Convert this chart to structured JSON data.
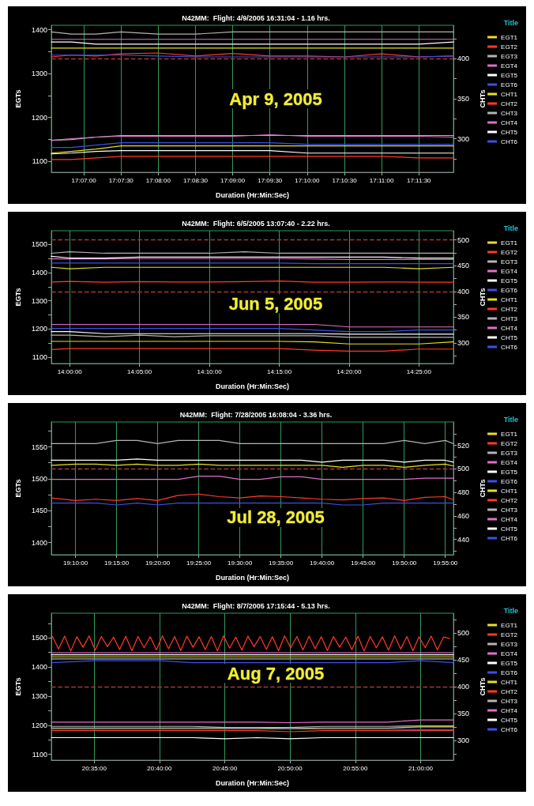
{
  "chart_data": [
    {
      "type": "line",
      "title": "N42MM:  Flight: 4/9/2005 16:31:04 - 1.16 hrs.",
      "xlabel": "Duration (Hr:Min:Sec)",
      "ylabel": "EGTs",
      "y2label": "CHTs",
      "legend_title": "Title",
      "annotations": [
        "Apr 9, 2005"
      ],
      "grid": "x",
      "legend": "right",
      "marker": "none",
      "x": [
        17.1094,
        17.1139,
        17.1194,
        17.125,
        17.1333,
        17.1417,
        17.15,
        17.1583,
        17.1667,
        17.175,
        17.1833,
        17.1917,
        17.1994
      ],
      "xlim": [
        17.1094,
        17.1994
      ],
      "xticks": [
        {
          "value": 17.116667,
          "label": "17:07:00"
        },
        {
          "value": 17.125,
          "label": "17:07:30"
        },
        {
          "value": 17.133333,
          "label": "17:08:00"
        },
        {
          "value": 17.141667,
          "label": "17:08:30"
        },
        {
          "value": 17.15,
          "label": "17:09:00"
        },
        {
          "value": 17.158333,
          "label": "17:09:30"
        },
        {
          "value": 17.166667,
          "label": "17:10:00"
        },
        {
          "value": 17.175,
          "label": "17:10:30"
        },
        {
          "value": 17.183333,
          "label": "17:11:00"
        },
        {
          "value": 17.191667,
          "label": "17:11:30"
        }
      ],
      "ylim": [
        1075,
        1410
      ],
      "yticks": [
        1100,
        {
          "value": 1150,
          "label": null
        },
        1200,
        {
          "value": 1250,
          "label": null
        },
        1300,
        {
          "value": 1350,
          "label": null
        },
        1400
      ],
      "y2lim": [
        258,
        442
      ],
      "y2ticks": [
        {
          "value": 275,
          "label": null
        },
        300,
        {
          "value": 325,
          "label": null
        },
        350,
        {
          "value": 375,
          "label": null
        },
        400,
        {
          "value": 425,
          "label": null
        }
      ],
      "ref_lines": [
        {
          "axis": "y2",
          "value": 400,
          "color": "#a83838",
          "line_style": "dashed"
        }
      ],
      "series": [
        {
          "name": "EGT1",
          "color": "#e6e020",
          "values": [
            1358,
            1358,
            1358,
            1358,
            1358,
            1358,
            1358,
            1358,
            1358,
            1358,
            1358,
            1358,
            1358
          ]
        },
        {
          "name": "EGT2",
          "color": "#ff3a2a",
          "values": [
            1338,
            1342,
            1340,
            1345,
            1347,
            1340,
            1346,
            1340,
            1340,
            1338,
            1345,
            1338,
            1340
          ]
        },
        {
          "name": "EGT3",
          "color": "#b4b4b4",
          "values": [
            1395,
            1390,
            1390,
            1395,
            1390,
            1390,
            1395,
            1395,
            1395,
            1395,
            1395,
            1395,
            1395
          ]
        },
        {
          "name": "EGT4",
          "color": "#e070c8",
          "values": [
            1378,
            1378,
            1378,
            1378,
            1378,
            1378,
            1378,
            1378,
            1378,
            1378,
            1378,
            1378,
            1378
          ]
        },
        {
          "name": "EGT5",
          "color": "#ffffff",
          "values": [
            1372,
            1372,
            1367,
            1367,
            1367,
            1367,
            1367,
            1367,
            1367,
            1367,
            1367,
            1367,
            1372
          ]
        },
        {
          "name": "EGT6",
          "color": "#3c50e6",
          "values": [
            1342,
            1342,
            1342,
            1342,
            1340,
            1338,
            1338,
            1338,
            1338,
            1338,
            1338,
            1338,
            1340
          ]
        },
        {
          "name": "CHT1",
          "color": "#e6e020",
          "axis": "y2",
          "values": [
            282,
            284,
            287,
            291,
            291,
            291,
            291,
            291,
            291,
            291,
            291,
            291,
            291
          ]
        },
        {
          "name": "CHT2",
          "color": "#ff3a2a",
          "axis": "y2",
          "values": [
            274,
            274,
            276,
            278,
            278,
            278,
            278,
            278,
            278,
            278,
            278,
            276,
            276
          ]
        },
        {
          "name": "CHT3",
          "color": "#b4b4b4",
          "axis": "y2",
          "values": [
            298,
            299,
            302,
            304,
            304,
            304,
            304,
            304,
            304,
            304,
            304,
            304,
            304
          ]
        },
        {
          "name": "CHT4",
          "color": "#e070c8",
          "axis": "y2",
          "values": [
            298,
            300,
            302,
            303,
            303,
            303,
            303,
            305,
            303,
            303,
            303,
            303,
            302
          ]
        },
        {
          "name": "CHT5",
          "color": "#ffffff",
          "axis": "y2",
          "values": [
            281,
            282,
            284,
            285,
            285,
            285,
            285,
            285,
            282,
            282,
            282,
            282,
            282
          ]
        },
        {
          "name": "CHT6",
          "color": "#3c50e6",
          "axis": "y2",
          "values": [
            289,
            289,
            292,
            295,
            295,
            295,
            295,
            295,
            293,
            293,
            293,
            293,
            293
          ]
        }
      ]
    },
    {
      "type": "line",
      "title": "N42MM:  Flight: 6/5/2005 13:07:40 - 2.22 hrs.",
      "xlabel": "Duration (Hr:Min:Sec)",
      "ylabel": "EGTs",
      "y2label": "CHTs",
      "legend_title": "Title",
      "annotations": [
        "Jun 5, 2005"
      ],
      "grid": "x",
      "legend": "right",
      "marker": "none",
      "x": [
        13.9781,
        14.0,
        14.0417,
        14.0833,
        14.125,
        14.1667,
        14.2083,
        14.25,
        14.2917,
        14.3333,
        14.375,
        14.4167,
        14.4578
      ],
      "xlim": [
        13.9781,
        14.4578
      ],
      "xticks": [
        {
          "value": 14.0,
          "label": "14:00:00"
        },
        {
          "value": 14.083333,
          "label": "14:05:00"
        },
        {
          "value": 14.166667,
          "label": "14:10:00"
        },
        {
          "value": 14.25,
          "label": "14:15:00"
        },
        {
          "value": 14.333333,
          "label": "14:20:00"
        },
        {
          "value": 14.416667,
          "label": "14:25:00"
        }
      ],
      "ylim": [
        1077,
        1549
      ],
      "yticks": [
        1100,
        {
          "value": 1150,
          "label": null
        },
        1200,
        {
          "value": 1250,
          "label": null
        },
        1300,
        {
          "value": 1350,
          "label": null
        },
        1400,
        {
          "value": 1450,
          "label": null
        },
        1500
      ],
      "y2lim": [
        260,
        518
      ],
      "y2ticks": [
        {
          "value": 275,
          "label": null
        },
        300,
        {
          "value": 325,
          "label": null
        },
        350,
        {
          "value": 375,
          "label": null
        },
        400,
        {
          "value": 425,
          "label": null
        },
        450,
        {
          "value": 475,
          "label": null
        },
        500
      ],
      "ref_lines": [
        {
          "axis": "y2",
          "value": 500,
          "color": "#a83838",
          "line_style": "dashed"
        },
        {
          "axis": "y2",
          "value": 400,
          "color": "#a83838",
          "line_style": "dashed"
        }
      ],
      "series": [
        {
          "name": "EGT1",
          "color": "#e6e020",
          "values": [
            1419,
            1414,
            1419,
            1419,
            1419,
            1419,
            1419,
            1419,
            1419,
            1419,
            1419,
            1414,
            1419
          ]
        },
        {
          "name": "EGT2",
          "color": "#ff3a2a",
          "values": [
            1367,
            1369,
            1366,
            1368,
            1367,
            1367,
            1368,
            1370,
            1366,
            1366,
            1367,
            1366,
            1366
          ]
        },
        {
          "name": "EGT3",
          "color": "#b4b4b4",
          "values": [
            1469,
            1474,
            1469,
            1469,
            1469,
            1469,
            1474,
            1469,
            1469,
            1469,
            1469,
            1469,
            1469
          ]
        },
        {
          "name": "EGT4",
          "color": "#e070c8",
          "values": [
            1449,
            1449,
            1449,
            1450,
            1450,
            1450,
            1450,
            1450,
            1449,
            1447,
            1447,
            1447,
            1447
          ]
        },
        {
          "name": "EGT5",
          "color": "#ffffff",
          "values": [
            1458,
            1452,
            1452,
            1455,
            1455,
            1455,
            1455,
            1455,
            1455,
            1455,
            1455,
            1452,
            1452
          ]
        },
        {
          "name": "EGT6",
          "color": "#3c50e6",
          "values": [
            1434,
            1434,
            1434,
            1434,
            1434,
            1434,
            1434,
            1434,
            1432,
            1432,
            1432,
            1432,
            1432
          ]
        },
        {
          "name": "CHT1",
          "color": "#e6e020",
          "axis": "y2",
          "values": [
            303,
            303,
            303,
            303,
            303,
            303,
            303,
            303,
            302,
            298,
            298,
            298,
            302
          ]
        },
        {
          "name": "CHT2",
          "color": "#ff3a2a",
          "axis": "y2",
          "values": [
            287,
            289,
            289,
            289,
            289,
            289,
            289,
            289,
            286,
            284,
            284,
            288,
            288
          ]
        },
        {
          "name": "CHT3",
          "color": "#b4b4b4",
          "axis": "y2",
          "values": [
            315,
            315,
            312,
            315,
            312,
            314,
            314,
            314,
            314,
            311,
            311,
            311,
            311
          ]
        },
        {
          "name": "CHT4",
          "color": "#e070c8",
          "axis": "y2",
          "values": [
            336,
            336,
            336,
            336,
            336,
            336,
            336,
            336,
            336,
            331,
            331,
            331,
            331
          ]
        },
        {
          "name": "CHT5",
          "color": "#ffffff",
          "axis": "y2",
          "values": [
            322,
            322,
            318,
            318,
            318,
            318,
            318,
            318,
            318,
            317,
            317,
            317,
            317
          ]
        },
        {
          "name": "CHT6",
          "color": "#3c50e6",
          "axis": "y2",
          "values": [
            328,
            328,
            328,
            328,
            328,
            328,
            328,
            328,
            325,
            322,
            322,
            325,
            325
          ]
        }
      ]
    },
    {
      "type": "line",
      "title": "N42MM:  Flight: 7/28/2005 16:08:04 - 3.36 hrs.",
      "xlabel": "Duration (Hr:Min:Sec)",
      "ylabel": "EGTs",
      "y2label": "CHTs",
      "legend_title": "Title",
      "annotations": [
        "Jul 28, 2005"
      ],
      "grid": "x",
      "legend": "right",
      "marker": "none",
      "x": [
        19.1178,
        19.1667,
        19.2083,
        19.25,
        19.2917,
        19.3333,
        19.375,
        19.4167,
        19.4583,
        19.5,
        19.5417,
        19.5833,
        19.625,
        19.6667,
        19.7083,
        19.75,
        19.7917,
        19.8333,
        19.875,
        19.9167,
        19.9331
      ],
      "xlim": [
        19.1178,
        19.9331
      ],
      "xticks": [
        {
          "value": 19.166667,
          "label": "19:10:00"
        },
        {
          "value": 19.25,
          "label": "19:15:00"
        },
        {
          "value": 19.333333,
          "label": "19:20:00"
        },
        {
          "value": 19.416667,
          "label": "19:25:00"
        },
        {
          "value": 19.5,
          "label": "19:30:00"
        },
        {
          "value": 19.583333,
          "label": "19:35:00"
        },
        {
          "value": 19.666667,
          "label": "19:40:00"
        },
        {
          "value": 19.75,
          "label": "19:45:00"
        },
        {
          "value": 19.833333,
          "label": "19:50:00"
        },
        {
          "value": 19.916667,
          "label": "19:55:00"
        }
      ],
      "ylim": [
        1381,
        1589
      ],
      "yticks": [
        1400,
        {
          "value": 1425,
          "label": null
        },
        1450,
        {
          "value": 1475,
          "label": null
        },
        1500,
        {
          "value": 1525,
          "label": null
        },
        1550,
        {
          "value": 1575,
          "label": null
        }
      ],
      "y2lim": [
        427,
        540
      ],
      "y2ticks": [
        {
          "value": 430,
          "label": null
        },
        440,
        {
          "value": 450,
          "label": null
        },
        460,
        {
          "value": 470,
          "label": null
        },
        480,
        {
          "value": 490,
          "label": null
        },
        500,
        {
          "value": 510,
          "label": null
        },
        520,
        {
          "value": 530,
          "label": null
        }
      ],
      "ref_lines": [
        {
          "axis": "y2",
          "value": 500,
          "color": "#a83838",
          "line_style": "dashed"
        }
      ],
      "series": [
        {
          "name": "EGT1",
          "color": "#e6e020",
          "values": [
            1521,
            1523,
            1523,
            1521,
            1523,
            1521,
            1521,
            1523,
            1521,
            1521,
            1521,
            1521,
            1521,
            1521,
            1518,
            1521,
            1521,
            1518,
            1521,
            1523,
            1520
          ]
        },
        {
          "name": "EGT2",
          "color": "#ff3a2a",
          "values": [
            1470,
            1466,
            1468,
            1466,
            1469,
            1466,
            1474,
            1476,
            1472,
            1470,
            1473,
            1472,
            1470,
            1468,
            1467,
            1469,
            1470,
            1466,
            1471,
            1472,
            1467
          ]
        },
        {
          "name": "EGT3",
          "color": "#b4b4b4",
          "values": [
            1555,
            1555,
            1555,
            1560,
            1560,
            1555,
            1560,
            1560,
            1560,
            1555,
            1555,
            1555,
            1555,
            1555,
            1555,
            1555,
            1555,
            1560,
            1555,
            1560,
            1555
          ]
        },
        {
          "name": "EGT4",
          "color": "#e070c8",
          "values": [
            1499,
            1499,
            1499,
            1499,
            1499,
            1499,
            1499,
            1504,
            1504,
            1499,
            1499,
            1503,
            1503,
            1499,
            1499,
            1499,
            1499,
            1499,
            1501,
            1501,
            1501
          ]
        },
        {
          "name": "EGT5",
          "color": "#ffffff",
          "values": [
            1529,
            1529,
            1529,
            1529,
            1531,
            1529,
            1529,
            1529,
            1529,
            1529,
            1529,
            1529,
            1529,
            1526,
            1529,
            1529,
            1529,
            1526,
            1529,
            1529,
            1526
          ]
        },
        {
          "name": "EGT6",
          "color": "#3c50e6",
          "values": [
            1462,
            1462,
            1462,
            1459,
            1462,
            1459,
            1462,
            1462,
            1462,
            1462,
            1462,
            1462,
            1462,
            1462,
            1459,
            1459,
            1462,
            1462,
            1462,
            1462,
            1462
          ]
        },
        {
          "name": "CHT1",
          "color": "#e6e020",
          "axis": "y2",
          "values": [
            null,
            null,
            null,
            null,
            null,
            null,
            null,
            null,
            null,
            null,
            null,
            null,
            null,
            null,
            null,
            null,
            null,
            null,
            null,
            null,
            null
          ]
        },
        {
          "name": "CHT2",
          "color": "#ff3a2a",
          "axis": "y2",
          "values": [
            null,
            null,
            null,
            null,
            null,
            null,
            null,
            null,
            null,
            null,
            null,
            null,
            null,
            null,
            null,
            null,
            null,
            null,
            null,
            null,
            null
          ]
        },
        {
          "name": "CHT3",
          "color": "#b4b4b4",
          "axis": "y2",
          "values": [
            null,
            null,
            null,
            null,
            null,
            null,
            null,
            null,
            null,
            null,
            null,
            null,
            null,
            null,
            null,
            null,
            null,
            null,
            null,
            null,
            null
          ]
        },
        {
          "name": "CHT4",
          "color": "#e070c8",
          "axis": "y2",
          "values": [
            null,
            null,
            null,
            null,
            null,
            null,
            null,
            null,
            null,
            null,
            null,
            null,
            null,
            null,
            null,
            null,
            null,
            null,
            null,
            null,
            null
          ]
        },
        {
          "name": "CHT5",
          "color": "#ffffff",
          "axis": "y2",
          "values": [
            null,
            null,
            null,
            null,
            null,
            null,
            null,
            null,
            null,
            null,
            null,
            null,
            null,
            null,
            null,
            null,
            null,
            null,
            null,
            null,
            null
          ]
        },
        {
          "name": "CHT6",
          "color": "#3c50e6",
          "axis": "y2",
          "values": [
            null,
            null,
            null,
            null,
            null,
            null,
            null,
            null,
            null,
            null,
            null,
            null,
            null,
            null,
            null,
            null,
            null,
            null,
            null,
            null,
            null
          ]
        }
      ]
    },
    {
      "type": "line",
      "title": "N42MM:  Flight: 8/7/2005 17:15:44 - 5.13 hrs.",
      "xlabel": "Duration (Hr:Min:Sec)",
      "ylabel": "EGTs",
      "y2label": "CHTs",
      "legend_title": "Title",
      "annotations": [
        "Aug 7, 2005"
      ],
      "grid": "x",
      "legend": "right",
      "marker": "none",
      "x": [
        20.5286,
        20.5833,
        20.625,
        20.6667,
        20.7083,
        20.75,
        20.7917,
        20.8333,
        20.875,
        20.9167,
        20.9583,
        21.0,
        21.0419
      ],
      "xlim": [
        20.5286,
        21.0419
      ],
      "xticks": [
        {
          "value": 20.583333,
          "label": "20:35:00"
        },
        {
          "value": 20.666667,
          "label": "20:40:00"
        },
        {
          "value": 20.75,
          "label": "20:45:00"
        },
        {
          "value": 20.833333,
          "label": "20:50:00"
        },
        {
          "value": 20.916667,
          "label": "20:55:00"
        },
        {
          "value": 21.0,
          "label": "21:00:00"
        }
      ],
      "ylim": [
        1080,
        1585
      ],
      "yticks": [
        1100,
        {
          "value": 1150,
          "label": null
        },
        1200,
        {
          "value": 1250,
          "label": null
        },
        1300,
        {
          "value": 1350,
          "label": null
        },
        1400,
        {
          "value": 1450,
          "label": null
        },
        1500,
        {
          "value": 1550,
          "label": null
        }
      ],
      "y2lim": [
        263,
        537
      ],
      "y2ticks": [
        {
          "value": 275,
          "label": null
        },
        300,
        {
          "value": 325,
          "label": null
        },
        350,
        {
          "value": 375,
          "label": null
        },
        400,
        {
          "value": 425,
          "label": null
        },
        450,
        {
          "value": 475,
          "label": null
        },
        500,
        {
          "value": 525,
          "label": null
        }
      ],
      "ref_lines": [
        {
          "axis": "y2",
          "value": 400,
          "color": "#a83838",
          "line_style": "dashed"
        }
      ],
      "series": [
        {
          "name": "EGT1",
          "color": "#e6e020",
          "values": [
            1435,
            1435,
            1435,
            1435,
            1435,
            1435,
            1435,
            1435,
            1435,
            1435,
            1435,
            1435,
            1435
          ]
        },
        {
          "name": "EGT2",
          "color": "#ff3a2a",
          "x": [
            20.53,
            20.5378,
            20.5456,
            20.5534,
            20.5612,
            20.569,
            20.5768,
            20.5846,
            20.5924,
            20.6002,
            20.608,
            20.6158,
            20.6236,
            20.6314,
            20.6392,
            20.647,
            20.6548,
            20.6626,
            20.6704,
            20.6782,
            20.686,
            20.6938,
            20.7016,
            20.7094,
            20.7172,
            20.725,
            20.7328,
            20.7406,
            20.7484,
            20.7562,
            20.764,
            20.7718,
            20.7796,
            20.7874,
            20.7952,
            20.803,
            20.8108,
            20.8186,
            20.8264,
            20.8342,
            20.842,
            20.8498,
            20.8576,
            20.8654,
            20.8732,
            20.881,
            20.8888,
            20.8966,
            20.9044,
            20.9122,
            20.92,
            20.9278,
            20.9356,
            20.9434,
            20.9512,
            20.959,
            20.9668,
            20.9746,
            20.9824,
            20.9902,
            20.998,
            21.0058,
            21.0136,
            21.0214,
            21.0292,
            21.037
          ],
          "values": [
            1505,
            1462,
            1506,
            1455,
            1504,
            1468,
            1507,
            1458,
            1505,
            1470,
            1503,
            1460,
            1506,
            1456,
            1505,
            1466,
            1504,
            1459,
            1507,
            1463,
            1505,
            1457,
            1506,
            1468,
            1504,
            1460,
            1505,
            1455,
            1507,
            1465,
            1503,
            1458,
            1506,
            1470,
            1505,
            1461,
            1504,
            1456,
            1507,
            1466,
            1505,
            1459,
            1506,
            1463,
            1504,
            1457,
            1505,
            1468,
            1503,
            1460,
            1506,
            1455,
            1505,
            1466,
            1504,
            1458,
            1507,
            1462,
            1505,
            1456,
            1504,
            1467,
            1506,
            1459,
            1503,
            1498
          ]
        },
        {
          "name": "EGT3",
          "color": "#b4b4b4",
          "values": [
            1428,
            1428,
            1428,
            1428,
            1428,
            1428,
            1428,
            1428,
            1428,
            1428,
            1428,
            1428,
            1428
          ]
        },
        {
          "name": "EGT4",
          "color": "#e070c8",
          "values": [
            1449,
            1449,
            1449,
            1449,
            1449,
            1449,
            1449,
            1449,
            1449,
            1449,
            1449,
            1449,
            1449
          ]
        },
        {
          "name": "EGT5",
          "color": "#ffffff",
          "values": [
            1442,
            1442,
            1442,
            1442,
            1442,
            1442,
            1442,
            1442,
            1442,
            1442,
            1442,
            1442,
            1442
          ]
        },
        {
          "name": "EGT6",
          "color": "#3c50e6",
          "values": [
            1415,
            1422,
            1422,
            1422,
            1415,
            1415,
            1415,
            1415,
            1415,
            1415,
            1415,
            1422,
            1415
          ]
        },
        {
          "name": "CHT1",
          "color": "#e6e020",
          "axis": "y2",
          "values": [
            323,
            323,
            323,
            323,
            323,
            323,
            323,
            322,
            323,
            323,
            323,
            325,
            325
          ]
        },
        {
          "name": "CHT2",
          "color": "#ff3a2a",
          "axis": "y2",
          "values": [
            318,
            318,
            318,
            318,
            318,
            318,
            318,
            316,
            318,
            318,
            318,
            318,
            318
          ]
        },
        {
          "name": "CHT3",
          "color": "#b4b4b4",
          "axis": "y2",
          "values": [
            326,
            326,
            326,
            326,
            326,
            324,
            324,
            324,
            326,
            326,
            326,
            327,
            327
          ]
        },
        {
          "name": "CHT4",
          "color": "#e070c8",
          "axis": "y2",
          "values": [
            334,
            334,
            334,
            334,
            334,
            334,
            334,
            333,
            334,
            334,
            334,
            338,
            338
          ]
        },
        {
          "name": "CHT5",
          "color": "#ffffff",
          "axis": "y2",
          "values": [
            305,
            305,
            305,
            305,
            305,
            303,
            305,
            303,
            305,
            305,
            305,
            305,
            305
          ]
        },
        {
          "name": "CHT6",
          "color": "#3c50e6",
          "axis": "y2",
          "values": [
            321,
            321,
            321,
            321,
            321,
            321,
            321,
            321,
            321,
            321,
            321,
            320,
            320
          ]
        }
      ]
    }
  ]
}
